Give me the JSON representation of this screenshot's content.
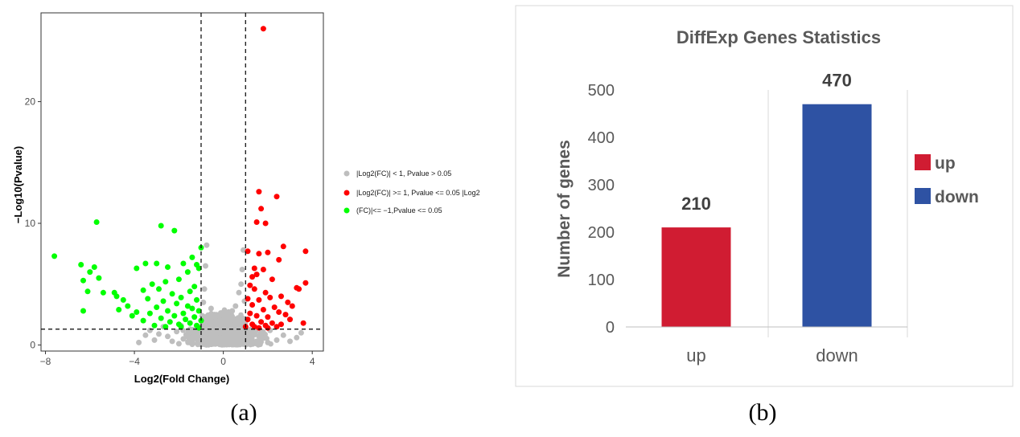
{
  "captions": {
    "a": "(a)",
    "b": "(b)"
  },
  "chart_data": [
    {
      "type": "scatter",
      "title": "",
      "xlabel": "Log2(Fold Change)",
      "ylabel": "−Log10(Pvalue)",
      "xlim": [
        -8.2,
        4.5
      ],
      "ylim": [
        -0.5,
        27.3
      ],
      "x_ticks": [
        -8,
        -4,
        0,
        4
      ],
      "x_tick_labels": [
        "−8",
        "−4",
        "0",
        "4"
      ],
      "y_ticks": [
        0,
        10,
        20
      ],
      "y_tick_labels": [
        "0",
        "10",
        "20"
      ],
      "thresholds": {
        "x": [
          -1,
          1
        ],
        "y": 1.3
      },
      "grid": false,
      "legend_placement": "right",
      "legend_lines": [
        "|Log2(FC)| < 1, Pvalue > 0.05",
        "|Log2(FC)| >= 1, Pvalue <= 0.05 |Log2",
        "(FC)|<= −1,Pvalue <= 0.05"
      ],
      "series": [
        {
          "color": "#bebebe",
          "points": [
            [
              -3.8,
              0.2
            ],
            [
              -3.3,
              1.2
            ],
            [
              -3.1,
              0.4
            ],
            [
              -2.9,
              0.9
            ],
            [
              -2.7,
              1.5
            ],
            [
              -2.5,
              0.7
            ],
            [
              -2.3,
              0.3
            ],
            [
              -2.1,
              1.1
            ],
            [
              -1.9,
              1.6
            ],
            [
              -1.8,
              0.5
            ],
            [
              -1.6,
              0.9
            ],
            [
              -1.5,
              1.3
            ],
            [
              -1.4,
              0.2
            ],
            [
              -1.2,
              0.7
            ],
            [
              -1.1,
              1.5
            ],
            [
              -0.95,
              2.4
            ],
            [
              -0.9,
              3.5
            ],
            [
              -0.85,
              4.6
            ],
            [
              -0.8,
              6.5
            ],
            [
              -0.75,
              8.2
            ],
            [
              -0.7,
              1.0
            ],
            [
              -0.6,
              2.0
            ],
            [
              -0.55,
              3.0
            ],
            [
              -0.5,
              0.4
            ],
            [
              -0.45,
              1.6
            ],
            [
              -0.4,
              2.5
            ],
            [
              -0.35,
              0.8
            ],
            [
              -0.3,
              1.2
            ],
            [
              -0.25,
              0.3
            ],
            [
              -0.2,
              1.9
            ],
            [
              -0.15,
              0.6
            ],
            [
              -0.1,
              1.0
            ],
            [
              -0.05,
              0.2
            ],
            [
              0.0,
              1.4
            ],
            [
              0.05,
              0.7
            ],
            [
              0.1,
              0.4
            ],
            [
              0.15,
              1.7
            ],
            [
              0.2,
              0.9
            ],
            [
              0.25,
              2.2
            ],
            [
              0.3,
              0.5
            ],
            [
              0.35,
              1.1
            ],
            [
              0.4,
              2.8
            ],
            [
              0.45,
              0.3
            ],
            [
              0.5,
              1.5
            ],
            [
              0.55,
              3.2
            ],
            [
              0.6,
              0.8
            ],
            [
              0.65,
              2.0
            ],
            [
              0.7,
              4.3
            ],
            [
              0.75,
              1.2
            ],
            [
              0.8,
              5.0
            ],
            [
              0.85,
              6.2
            ],
            [
              0.9,
              7.8
            ],
            [
              0.95,
              3.6
            ],
            [
              1.1,
              0.5
            ],
            [
              1.3,
              1.1
            ],
            [
              1.5,
              0.3
            ],
            [
              1.7,
              0.9
            ],
            [
              1.9,
              0.6
            ],
            [
              2.1,
              1.2
            ],
            [
              2.4,
              0.4
            ],
            [
              2.7,
              0.8
            ],
            [
              3.0,
              0.3
            ],
            [
              3.5,
              1.0
            ],
            [
              -2.0,
              0.1
            ],
            [
              -1.0,
              0.1
            ],
            [
              0.3,
              0.1
            ],
            [
              1.2,
              0.2
            ],
            [
              2.0,
              0.2
            ],
            [
              -3.5,
              0.8
            ],
            [
              3.3,
              0.6
            ]
          ]
        },
        {
          "color": "#ff0000",
          "points": [
            [
              1.8,
              26.0
            ],
            [
              1.6,
              12.6
            ],
            [
              2.4,
              12.2
            ],
            [
              1.7,
              11.2
            ],
            [
              1.5,
              10.1
            ],
            [
              1.9,
              10.0
            ],
            [
              1.1,
              7.7
            ],
            [
              2.0,
              7.6
            ],
            [
              2.7,
              8.1
            ],
            [
              3.7,
              7.7
            ],
            [
              1.6,
              7.5
            ],
            [
              1.4,
              6.3
            ],
            [
              2.5,
              7.0
            ],
            [
              1.8,
              6.2
            ],
            [
              1.5,
              5.8
            ],
            [
              2.2,
              5.4
            ],
            [
              1.3,
              5.6
            ],
            [
              3.4,
              4.6
            ],
            [
              3.3,
              4.7
            ],
            [
              3.7,
              5.1
            ],
            [
              1.2,
              4.9
            ],
            [
              1.9,
              4.3
            ],
            [
              2.6,
              4.0
            ],
            [
              1.4,
              4.6
            ],
            [
              2.1,
              3.9
            ],
            [
              2.9,
              3.5
            ],
            [
              1.6,
              3.7
            ],
            [
              1.1,
              3.8
            ],
            [
              1.3,
              3.3
            ],
            [
              2.3,
              3.1
            ],
            [
              3.1,
              3.2
            ],
            [
              1.8,
              2.9
            ],
            [
              2.5,
              2.7
            ],
            [
              1.2,
              2.6
            ],
            [
              1.5,
              2.4
            ],
            [
              2.0,
              2.3
            ],
            [
              2.8,
              2.5
            ],
            [
              3.0,
              2.1
            ],
            [
              1.1,
              2.1
            ],
            [
              1.7,
              1.9
            ],
            [
              2.2,
              1.8
            ],
            [
              2.6,
              1.7
            ],
            [
              1.3,
              1.7
            ],
            [
              3.6,
              1.8
            ],
            [
              1.9,
              1.6
            ],
            [
              1.0,
              1.5
            ],
            [
              1.4,
              1.5
            ],
            [
              2.4,
              1.5
            ],
            [
              1.6,
              1.4
            ],
            [
              2.0,
              1.4
            ]
          ]
        },
        {
          "color": "#00ff00",
          "points": [
            [
              -7.6,
              7.3
            ],
            [
              -5.7,
              10.1
            ],
            [
              -6.4,
              6.6
            ],
            [
              -5.8,
              6.4
            ],
            [
              -6.0,
              6.0
            ],
            [
              -5.6,
              5.5
            ],
            [
              -6.3,
              5.3
            ],
            [
              -5.4,
              4.3
            ],
            [
              -6.1,
              4.4
            ],
            [
              -4.9,
              4.3
            ],
            [
              -4.8,
              4.0
            ],
            [
              -4.5,
              3.7
            ],
            [
              -4.3,
              3.2
            ],
            [
              -4.7,
              2.9
            ],
            [
              -6.3,
              2.8
            ],
            [
              -2.8,
              9.8
            ],
            [
              -2.2,
              9.4
            ],
            [
              -1.2,
              6.6
            ],
            [
              -1.0,
              8.0
            ],
            [
              -1.4,
              7.2
            ],
            [
              -3.0,
              6.7
            ],
            [
              -3.5,
              6.7
            ],
            [
              -2.5,
              6.4
            ],
            [
              -1.8,
              6.7
            ],
            [
              -3.9,
              6.3
            ],
            [
              -1.1,
              6.3
            ],
            [
              -1.6,
              6.0
            ],
            [
              -2.0,
              5.4
            ],
            [
              -2.6,
              5.2
            ],
            [
              -3.2,
              5.0
            ],
            [
              -1.3,
              4.8
            ],
            [
              -2.9,
              4.6
            ],
            [
              -3.6,
              4.5
            ],
            [
              -1.5,
              4.4
            ],
            [
              -2.3,
              4.2
            ],
            [
              -1.9,
              3.9
            ],
            [
              -3.4,
              3.8
            ],
            [
              -1.2,
              3.7
            ],
            [
              -2.7,
              3.6
            ],
            [
              -2.1,
              3.4
            ],
            [
              -1.6,
              3.2
            ],
            [
              -3.0,
              3.1
            ],
            [
              -1.4,
              3.0
            ],
            [
              -2.5,
              2.8
            ],
            [
              -1.1,
              2.8
            ],
            [
              -3.3,
              2.6
            ],
            [
              -1.8,
              2.6
            ],
            [
              -2.2,
              2.4
            ],
            [
              -1.3,
              2.3
            ],
            [
              -2.8,
              2.2
            ],
            [
              -1.7,
              2.1
            ],
            [
              -3.6,
              2.0
            ],
            [
              -1.0,
              2.0
            ],
            [
              -2.4,
              1.9
            ],
            [
              -1.5,
              1.8
            ],
            [
              -2.0,
              1.7
            ],
            [
              -3.1,
              1.6
            ],
            [
              -1.2,
              1.6
            ],
            [
              -2.6,
              1.5
            ],
            [
              -1.9,
              1.5
            ],
            [
              -3.9,
              2.7
            ],
            [
              -4.1,
              2.4
            ],
            [
              -1.1,
              1.4
            ]
          ]
        }
      ]
    },
    {
      "type": "bar",
      "title": "DiffExp Genes Statistics",
      "ylabel": "Number of genes",
      "xlabel": "",
      "categories": [
        "up",
        "down"
      ],
      "values": [
        210,
        470
      ],
      "data_labels": [
        "210",
        "470"
      ],
      "colors": [
        "#d01c32",
        "#2e52a3"
      ],
      "ylim": [
        0,
        500
      ],
      "y_ticks": [
        0,
        100,
        200,
        300,
        400,
        500
      ],
      "grid": false,
      "legend_placement": "right",
      "legend": [
        {
          "label": "up",
          "color": "#d01c32"
        },
        {
          "label": "down",
          "color": "#2e52a3"
        }
      ]
    }
  ]
}
